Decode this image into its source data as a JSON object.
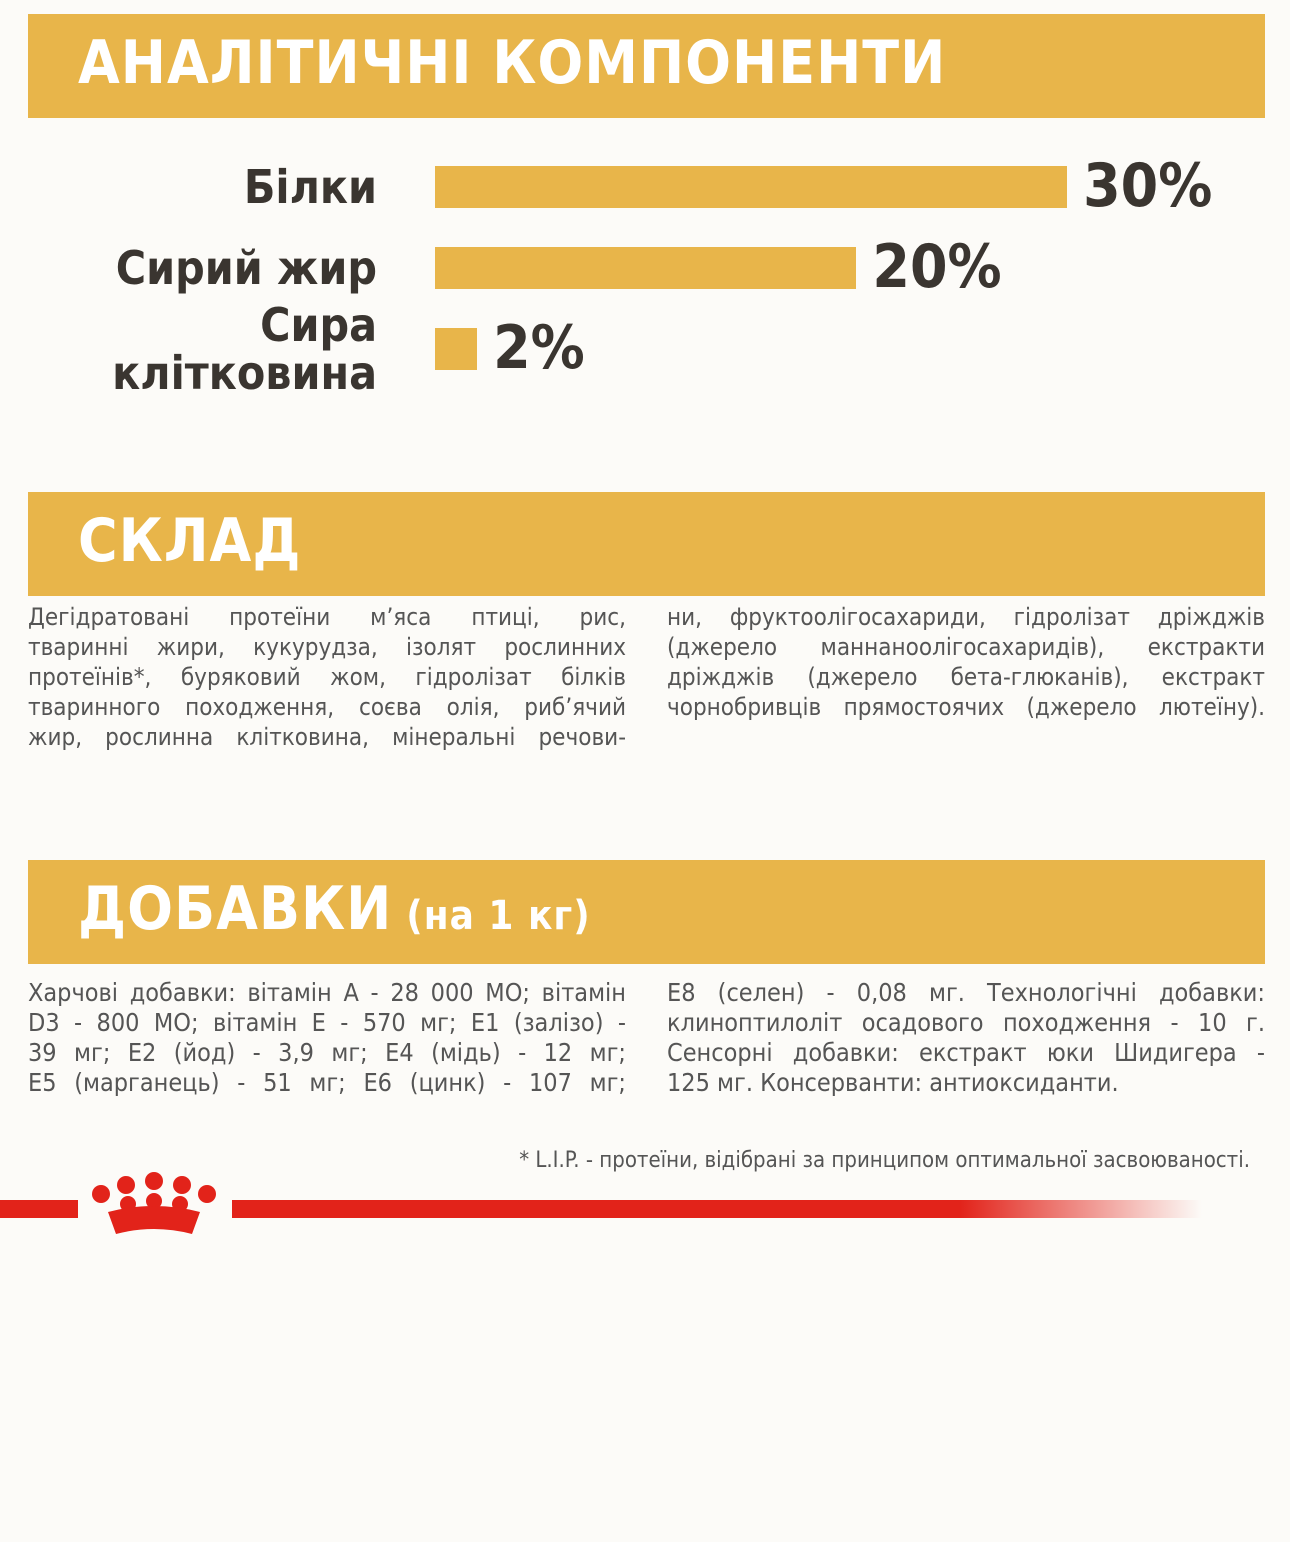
{
  "chart_data": {
    "type": "bar",
    "title": "АНАЛІТИЧНІ КОМПОНЕНТИ",
    "categories": [
      "Білки",
      "Сирий жир",
      "Сира клітковина"
    ],
    "values": [
      30,
      20,
      2
    ],
    "value_labels": [
      "30%",
      "20%",
      "2%"
    ],
    "color": "#e8b54a"
  },
  "composition": {
    "title": "СКЛАД",
    "columns": [
      [
        "Дегідратовані протеїни м’яса птиці, рис,",
        "тваринні жири, кукурудза, ізолят рослинних",
        "протеїнів*, буряковий жом, гідролізат білків",
        "тваринного походження, соєва олія, риб’ячий",
        "жир, рослинна клітковина, мінеральні речови-"
      ],
      [
        "ни, фруктоолігосахариди, гідролізат дріжджів",
        "(джерело маннаноолігосахаридів), екстракти",
        "дріжджів (джерело бета-глюканів), екстракт",
        "чорнобривців прямостоячих (джерело лютеїну)."
      ]
    ]
  },
  "additives": {
    "title": "ДОБАВКИ",
    "title_note": "(на 1 кг)",
    "columns": [
      [
        "Харчові добавки: вітамін А - 28 000 МО; вітамін",
        "D3 - 800 МО; вітамін Е - 570 мг; Е1 (залізо) -",
        "39 мг; Е2 (йод) - 3,9 мг; Е4 (мідь) - 12 мг;",
        "Е5 (марганець) - 51 мг; Е6 (цинк) - 107 мг;"
      ],
      [
        "Е8 (селен) - 0,08 мг. Технологічні добавки:",
        "клиноптилоліт осадового походження - 10 г.",
        "Сенсорні добавки: екстракт юки Шидигера -",
        "125 мг. Консерванти: антиоксиданти."
      ]
    ]
  },
  "footnote": "* L.I.P. - протеїни, відібрані за принципом оптимальної засвоюваності."
}
